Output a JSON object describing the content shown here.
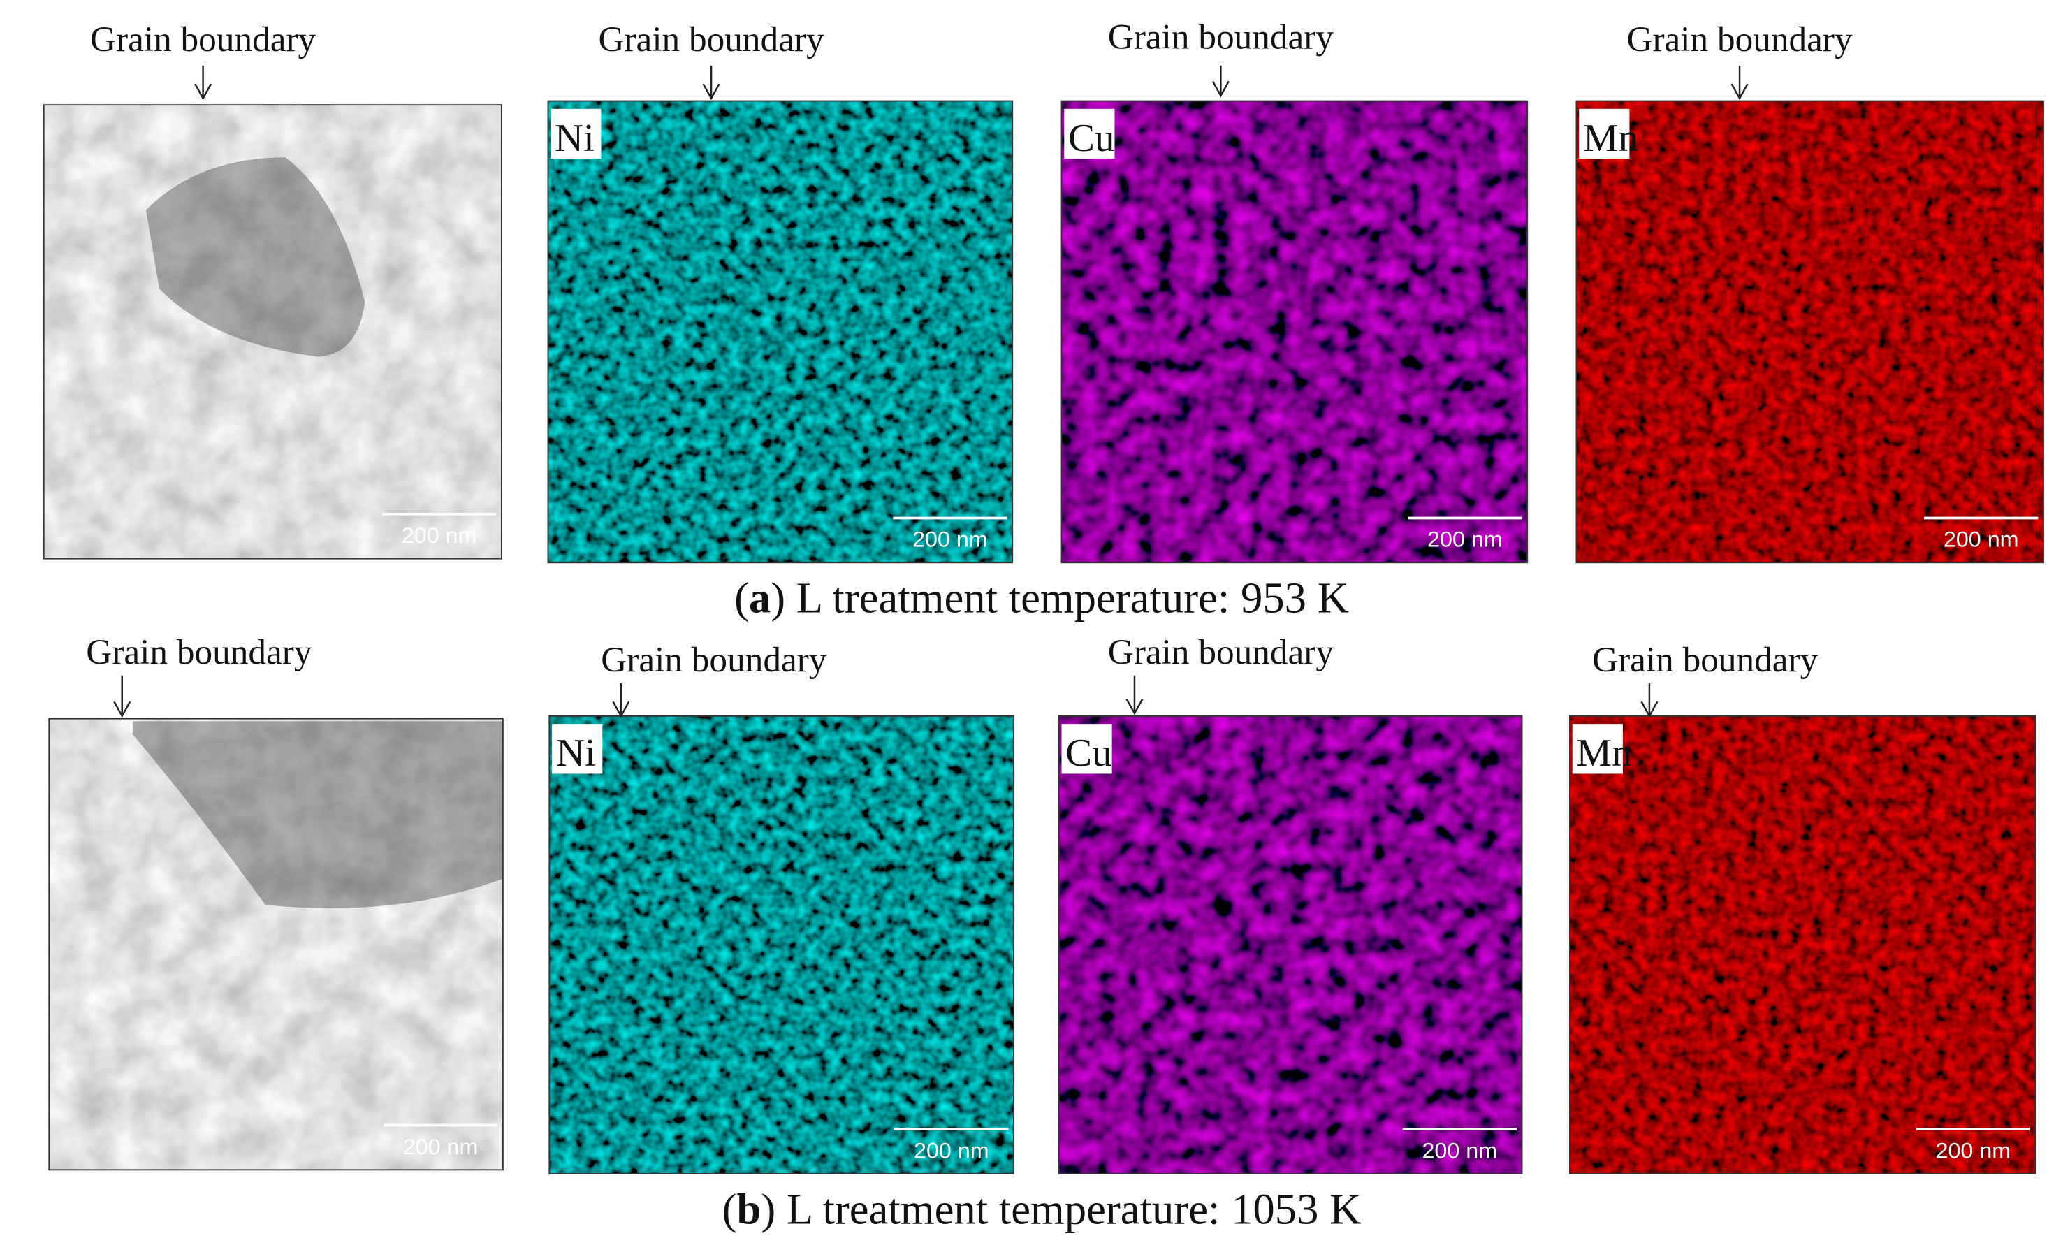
{
  "panels": [
    {
      "label_prefix": "(",
      "label": "a",
      "caption": ") L treatment temperature: 953 K",
      "images": [
        {
          "annotation": "Grain boundary",
          "scale_bar": "200 nm"
        },
        {
          "element": "Ni",
          "annotation": "Grain boundary",
          "scale_bar": "200 nm"
        },
        {
          "element": "Cu",
          "annotation": "Grain boundary",
          "scale_bar": "200 nm"
        },
        {
          "element": "Mn",
          "annotation": "Grain boundary",
          "scale_bar": "200 nm"
        }
      ]
    },
    {
      "label_prefix": "(",
      "label": "b",
      "caption": ") L treatment temperature: 1053 K",
      "images": [
        {
          "annotation": "Grain boundary",
          "scale_bar": "200 nm"
        },
        {
          "element": "Ni",
          "annotation": "Grain boundary",
          "scale_bar": "200 nm"
        },
        {
          "element": "Cu",
          "annotation": "Grain boundary",
          "scale_bar": "200 nm"
        },
        {
          "element": "Mn",
          "annotation": "Grain boundary",
          "scale_bar": "200 nm"
        }
      ]
    }
  ]
}
